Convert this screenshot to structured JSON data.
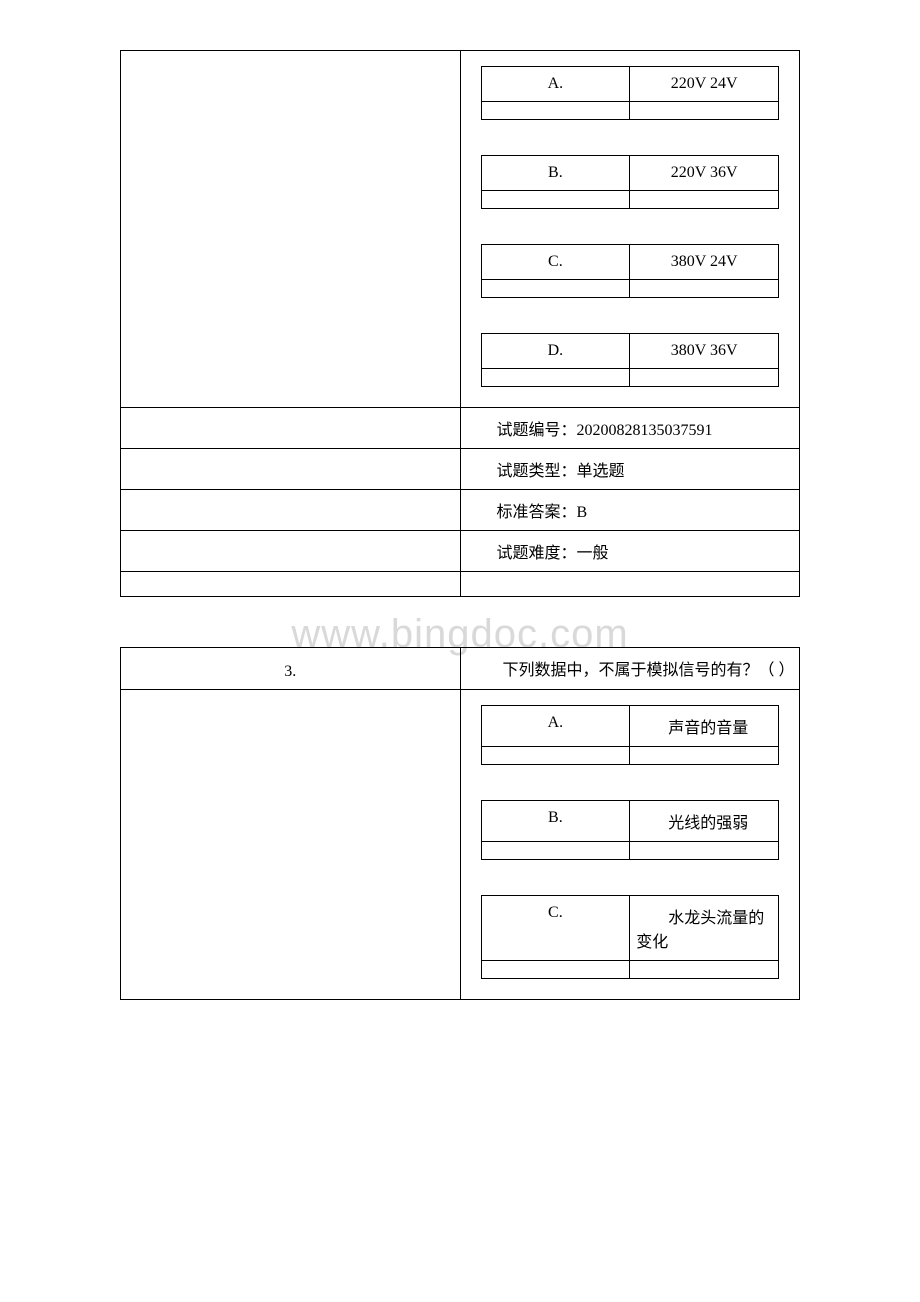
{
  "watermark": "www.bingdoc.com",
  "table1": {
    "options": [
      {
        "letter": "A.",
        "text": "220V 24V"
      },
      {
        "letter": "B.",
        "text": "220V 36V"
      },
      {
        "letter": "C.",
        "text": "380V 24V"
      },
      {
        "letter": "D.",
        "text": "380V 36V"
      }
    ],
    "meta": {
      "id_label": "试题编号：",
      "id_value": "20200828135037591",
      "type_label": "试题类型：",
      "type_value": "单选题",
      "answer_label": "标准答案：",
      "answer_value": "B",
      "difficulty_label": "试题难度：",
      "difficulty_value": "一般"
    }
  },
  "table2": {
    "question_num": "3.",
    "question_text": "下列数据中，不属于模拟信号的有？（ ）",
    "options": [
      {
        "letter": "A.",
        "text": "声音的音量"
      },
      {
        "letter": "B.",
        "text": "光线的强弱"
      },
      {
        "letter": "C.",
        "text": "水龙头流量的变化"
      }
    ]
  },
  "colors": {
    "border": "#000000",
    "background": "#ffffff",
    "text": "#000000",
    "watermark": "#d9d9d9"
  }
}
